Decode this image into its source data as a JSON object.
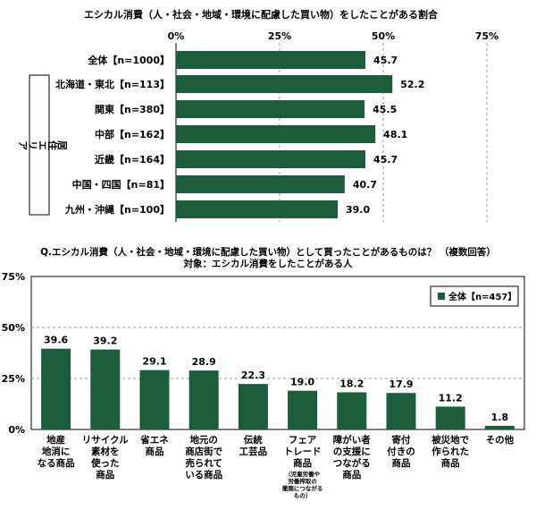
{
  "colors": {
    "bar": "#1a5c3b",
    "grid": "#9a9a9a",
    "axis": "#000000",
    "frame": "#000000"
  },
  "chart_data": [
    {
      "type": "bar",
      "orientation": "horizontal",
      "title": "エシカル消費（人・社会・地域・環境に配慮した買い物）をしたことがある割合",
      "xlim": [
        0,
        75
      ],
      "ticks": [
        0,
        25,
        50,
        75
      ],
      "tick_labels": [
        "0%",
        "25%",
        "50%",
        "75%"
      ],
      "group_label": "居住エリア",
      "categories": [
        "全体【n=1000】",
        "北海道・東北【n=113】",
        "関東【n=380】",
        "中部【n=162】",
        "近畿【n=164】",
        "中国・四国【n=81】",
        "九州・沖縄【n=100】"
      ],
      "values": [
        45.7,
        52.2,
        45.5,
        48.1,
        45.7,
        40.7,
        39.0
      ],
      "value_labels": [
        "45.7",
        "52.2",
        "45.5",
        "48.1",
        "45.7",
        "40.7",
        "39.0"
      ]
    },
    {
      "type": "bar",
      "orientation": "vertical",
      "title": "Q.エシカル消費（人・社会・地域・環境に配慮した買い物）として買ったことがあるものは？ （複数回答）",
      "subtitle": "対象：エシカル消費をしたことがある人",
      "ylim": [
        0,
        75
      ],
      "ticks": [
        0,
        25,
        50,
        75
      ],
      "tick_labels": [
        "0%",
        "25%",
        "50%",
        "75%"
      ],
      "legend": "全体【n=457】",
      "legend_position": "top-right",
      "categories": [
        {
          "lines": [
            "地産",
            "地消に",
            "なる商品"
          ]
        },
        {
          "lines": [
            "リサイクル",
            "素材を",
            "使った",
            "商品"
          ]
        },
        {
          "lines": [
            "省エネ",
            "商品"
          ]
        },
        {
          "lines": [
            "地元の",
            "商店街で",
            "売られて",
            "いる商品"
          ]
        },
        {
          "lines": [
            "伝統",
            "工芸品"
          ]
        },
        {
          "lines": [
            "フェア",
            "トレード",
            "商品"
          ],
          "note": [
            "（児童労働や",
            "労働搾取の",
            "撤廃につながる",
            "もの）"
          ]
        },
        {
          "lines": [
            "障がい者",
            "の支援に",
            "つながる",
            "商品"
          ]
        },
        {
          "lines": [
            "寄付",
            "付きの",
            "商品"
          ]
        },
        {
          "lines": [
            "被災地で",
            "作られた",
            "商品"
          ]
        },
        {
          "lines": [
            "その他"
          ]
        }
      ],
      "values": [
        39.6,
        39.2,
        29.1,
        28.9,
        22.3,
        19.0,
        18.2,
        17.9,
        11.2,
        1.8
      ],
      "value_labels": [
        "39.6",
        "39.2",
        "29.1",
        "28.9",
        "22.3",
        "19.0",
        "18.2",
        "17.9",
        "11.2",
        "1.8"
      ]
    }
  ]
}
